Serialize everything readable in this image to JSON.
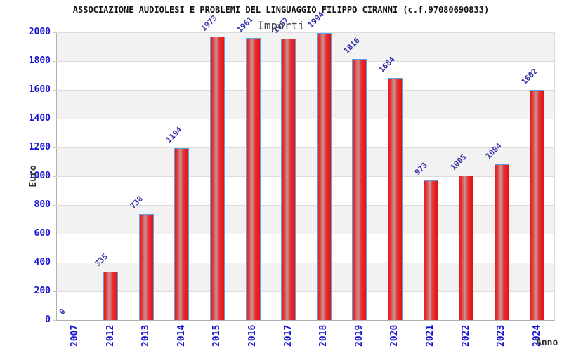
{
  "chart_data": {
    "type": "bar",
    "title": "ASSOCIAZIONE AUDIOLESI E PROBLEMI DEL LINGUAGGIO FILIPPO CIRANNI (c.f.97080690833)",
    "subtitle": "Importi",
    "xlabel": "Anno",
    "ylabel": "Euro",
    "categories": [
      "2007",
      "2012",
      "2013",
      "2014",
      "2015",
      "2016",
      "2017",
      "2018",
      "2019",
      "2020",
      "2021",
      "2022",
      "2023",
      "2024"
    ],
    "values": [
      0,
      335,
      738,
      1194,
      1973,
      1961,
      1957,
      1994,
      1816,
      1684,
      973,
      1005,
      1084,
      1602
    ],
    "ylim": [
      0,
      2000
    ],
    "ytick_step": 200,
    "yticks": [
      0,
      200,
      400,
      600,
      800,
      1000,
      1200,
      1400,
      1600,
      1800,
      2000
    ],
    "grid": true,
    "legend": "none",
    "colors": {
      "bar_fill": "#ed1a1a",
      "bar_highlight": "#c98d8d",
      "bar_border": "#5aa0e6",
      "tick_label": "#1414d2",
      "value_label": "#3333aa",
      "band_gray": "#f2f2f2",
      "band_white": "#ffffff",
      "gridline": "#dcdcdc",
      "axis_line": "#b0b0b0",
      "axis_title": "#333333",
      "title": "#111111",
      "subtitle": "#444444"
    }
  }
}
